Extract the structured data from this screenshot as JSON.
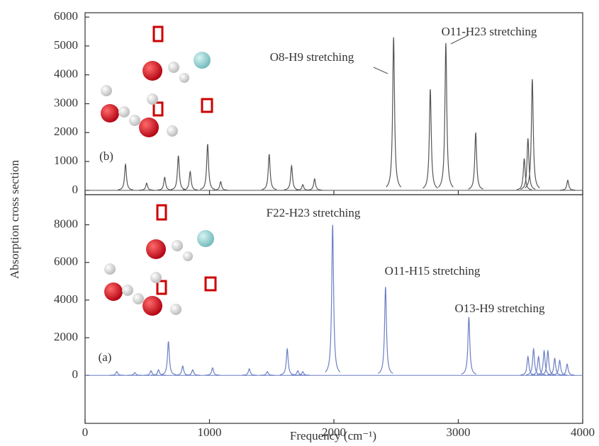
{
  "chart_data": [
    {
      "type": "spectrum",
      "panel_label": "(b)",
      "color": "#555555",
      "ylabel": "Absorption cross section",
      "xlim": [
        0,
        4000
      ],
      "xticks": [
        0,
        1000,
        2000,
        3000,
        4000
      ],
      "ylim": [
        -150,
        6150
      ],
      "yticks": [
        0,
        1000,
        2000,
        3000,
        4000,
        5000,
        6000
      ],
      "x": [
        325,
        495,
        640,
        750,
        845,
        985,
        1090,
        1480,
        1660,
        1750,
        1845,
        2480,
        2775,
        2900,
        3140,
        3530,
        3560,
        3595,
        3880
      ],
      "values": [
        900,
        250,
        450,
        1200,
        650,
        1600,
        300,
        1250,
        850,
        200,
        400,
        5300,
        3500,
        5100,
        2000,
        1100,
        1800,
        3850,
        350
      ],
      "annotations": [
        "O8-H9 stretching",
        "O11-H23 stretching"
      ]
    },
    {
      "type": "spectrum",
      "panel_label": "(a)",
      "color": "#6b7fc4",
      "xlabel": "Frequency (cm⁻¹)",
      "xlim": [
        0,
        4000
      ],
      "xticks": [
        0,
        1000,
        2000,
        3000,
        4000
      ],
      "ylim": [
        -2550,
        9600
      ],
      "yticks": [
        0,
        2000,
        4000,
        6000,
        8000
      ],
      "x": [
        255,
        400,
        530,
        590,
        670,
        785,
        865,
        1025,
        1320,
        1465,
        1625,
        1710,
        1750,
        1990,
        2415,
        3085,
        3560,
        3605,
        3645,
        3690,
        3720,
        3775,
        3815,
        3875
      ],
      "values": [
        200,
        150,
        250,
        300,
        1800,
        500,
        300,
        400,
        350,
        200,
        1400,
        250,
        200,
        8000,
        4700,
        3100,
        1000,
        1400,
        1000,
        1300,
        1300,
        900,
        800,
        600
      ],
      "annotations": [
        "F22-H23 stretching",
        "O11-H15 stretching",
        "O13-H9 stretching"
      ]
    }
  ]
}
